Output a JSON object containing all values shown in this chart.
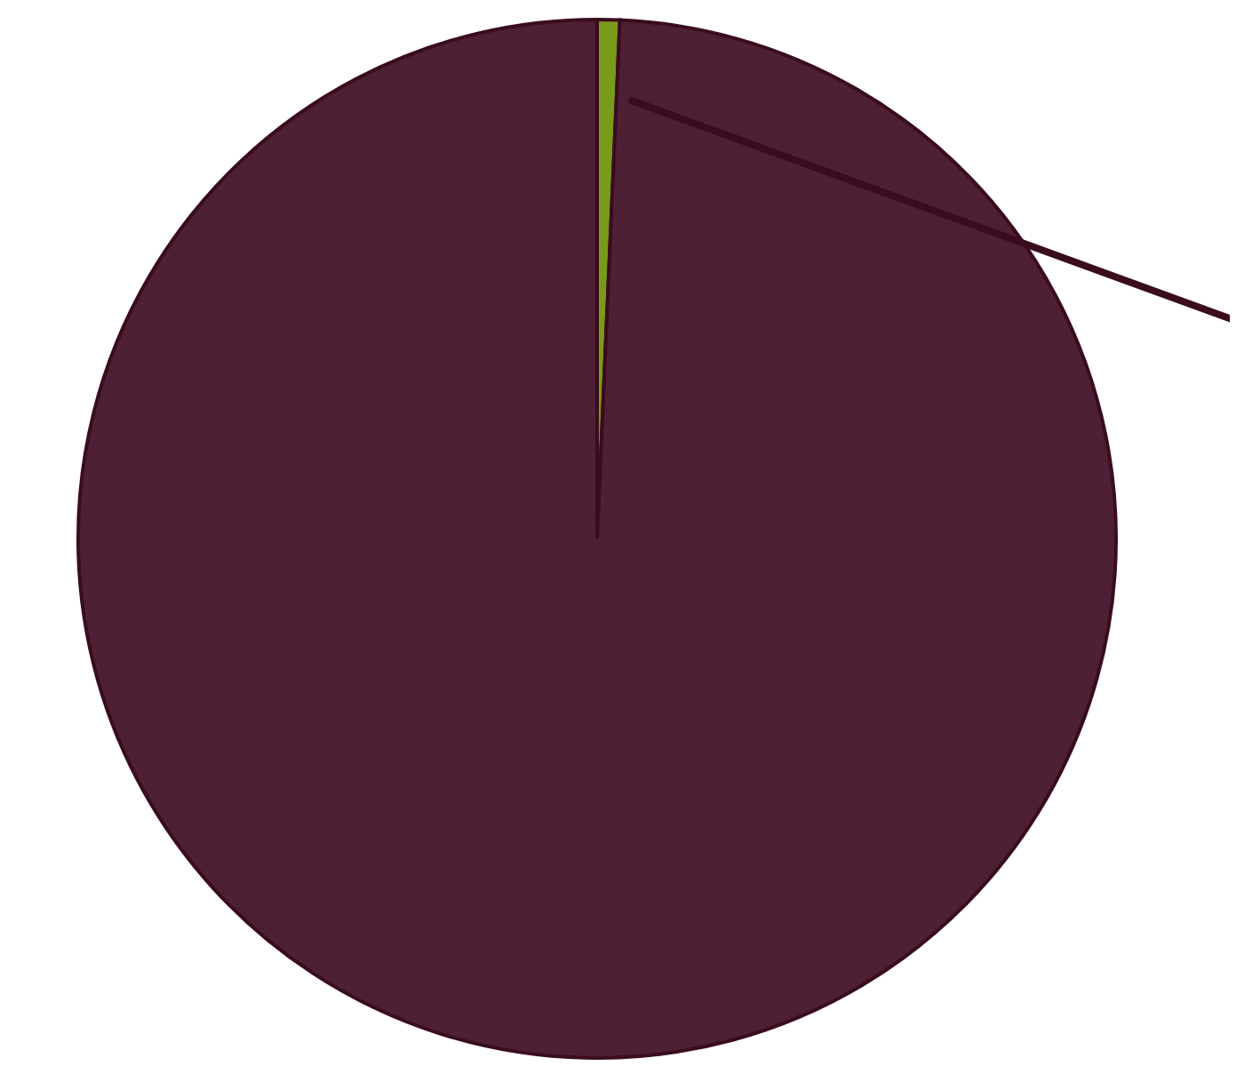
{
  "chart_data": {
    "type": "pie",
    "categories": [
      null,
      null
    ],
    "values": [
      0.7,
      99.3
    ],
    "colors": [
      "#7a9a1a",
      "#4d2035"
    ]
  }
}
